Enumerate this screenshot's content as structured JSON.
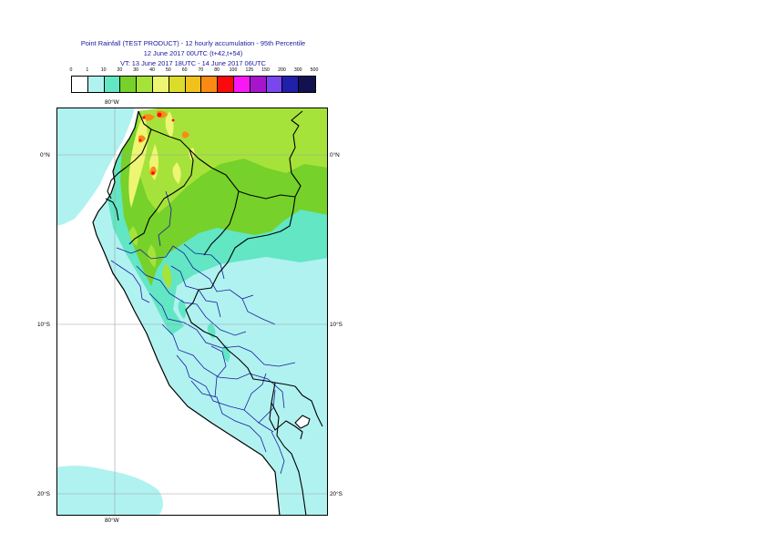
{
  "title": {
    "line1": "Point Rainfall (TEST PRODUCT) - 12 hourly accumulation - 95th Percentile",
    "line2": "12 June 2017 00UTC (t+42,t+54)",
    "line3": "VT: 13 June 2017 18UTC - 14 June 2017 06UTC"
  },
  "legend": {
    "thresholds": [
      "0",
      "1",
      "10",
      "20",
      "30",
      "40",
      "50",
      "60",
      "70",
      "80",
      "100",
      "125",
      "150",
      "200",
      "300",
      "500"
    ],
    "colors": [
      "#ffffff",
      "#b0f2f0",
      "#62e6c4",
      "#76d12a",
      "#a6e33a",
      "#eef573",
      "#dcdc2a",
      "#f2c21c",
      "#fb8a14",
      "#fa0a0a",
      "#f818f6",
      "#a614cc",
      "#7a46f0",
      "#2020aa",
      "#121250"
    ]
  },
  "map": {
    "lon_top_label": "80°W",
    "lon_bottom_label": "80°W",
    "lat_labels": [
      "0°N",
      "10°S",
      "20°S"
    ]
  },
  "colors": {
    "ocean": "#ffffff",
    "light_cyan": "#b0f2f0",
    "mid_cyan": "#62e6c4",
    "green": "#76d12a",
    "light_green": "#a6e33a",
    "yellow": "#eef573",
    "orange": "#fb8a14",
    "red": "#fa0a0a",
    "border": "#000000",
    "admin_border": "#1a1aa0",
    "grid": "#a0a0a0"
  }
}
